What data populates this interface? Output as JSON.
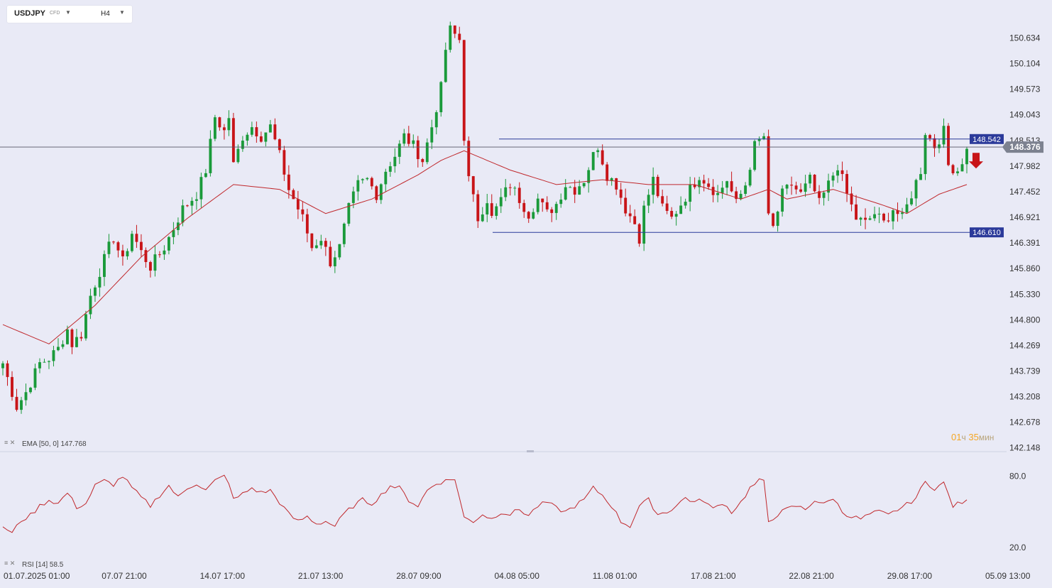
{
  "header": {
    "symbol": "USDJPY",
    "symbol_tag": "CFD",
    "timeframe": "H4"
  },
  "countdown": {
    "hours": "01",
    "hours_unit": "ч",
    "minutes": "35",
    "minutes_unit": "мин"
  },
  "indicators": {
    "ema_label": "EMA [50, 0] 147.768",
    "rsi_label": "RSI [14] 58.5"
  },
  "colors": {
    "background": "#e9eaf6",
    "bull": "#1a9a3a",
    "bear": "#c81418",
    "ema": "#c0282c",
    "level_line": "#2b3a9a",
    "price_tag": "#7d8290",
    "arrow": "#c81418"
  },
  "chart_data": {
    "type": "candlestick",
    "price_axis": {
      "ticks": [
        "150.634",
        "150.104",
        "149.573",
        "149.043",
        "148.513",
        "147.982",
        "147.452",
        "146.921",
        "146.391",
        "145.860",
        "145.330",
        "144.800",
        "144.269",
        "143.739",
        "143.208",
        "142.678",
        "142.148"
      ],
      "range": [
        142.148,
        150.634
      ]
    },
    "time_axis": {
      "ticks": [
        "01.07.2025  01:00",
        "07.07  21:00",
        "14.07  17:00",
        "21.07  13:00",
        "28.07  09:00",
        "04.08  05:00",
        "11.08  01:00",
        "17.08  21:00",
        "22.08  21:00",
        "29.08  17:00",
        "05.09  13:00"
      ]
    },
    "current_price": "148.376",
    "levels": [
      {
        "label": "148.542",
        "value": 148.542
      },
      {
        "label": "146.610",
        "value": 146.61
      }
    ],
    "close_path": [
      [
        0,
        143.9
      ],
      [
        3,
        143.0
      ],
      [
        5,
        143.3
      ],
      [
        8,
        143.9
      ],
      [
        10,
        144.0
      ],
      [
        12,
        144.2
      ],
      [
        14,
        144.6
      ],
      [
        15,
        144.3
      ],
      [
        17,
        144.5
      ],
      [
        19,
        145.3
      ],
      [
        21,
        145.8
      ],
      [
        23,
        146.3
      ],
      [
        24,
        146.5
      ],
      [
        26,
        146.0
      ],
      [
        28,
        146.6
      ],
      [
        30,
        146.2
      ],
      [
        32,
        145.9
      ],
      [
        35,
        146.3
      ],
      [
        37,
        146.7
      ],
      [
        39,
        147.1
      ],
      [
        42,
        147.4
      ],
      [
        44,
        147.9
      ],
      [
        46,
        149.0
      ],
      [
        48,
        148.7
      ],
      [
        49,
        149.0
      ],
      [
        50,
        148.0
      ],
      [
        52,
        148.6
      ],
      [
        54,
        148.8
      ],
      [
        56,
        148.6
      ],
      [
        58,
        148.8
      ],
      [
        60,
        148.2
      ],
      [
        62,
        147.5
      ],
      [
        64,
        147.1
      ],
      [
        65,
        146.9
      ],
      [
        67,
        146.3
      ],
      [
        69,
        146.5
      ],
      [
        71,
        146.0
      ],
      [
        73,
        146.3
      ],
      [
        75,
        147.1
      ],
      [
        77,
        147.6
      ],
      [
        79,
        147.7
      ],
      [
        81,
        147.4
      ],
      [
        83,
        147.9
      ],
      [
        85,
        148.2
      ],
      [
        87,
        148.6
      ],
      [
        89,
        148.4
      ],
      [
        91,
        148.1
      ],
      [
        93,
        148.8
      ],
      [
        95,
        149.6
      ],
      [
        96,
        150.4
      ],
      [
        97,
        150.8
      ],
      [
        99,
        150.6
      ],
      [
        100,
        148.6
      ],
      [
        101,
        147.7
      ],
      [
        102,
        147.3
      ],
      [
        103,
        146.9
      ],
      [
        105,
        147.3
      ],
      [
        106,
        146.9
      ],
      [
        108,
        147.3
      ],
      [
        110,
        147.6
      ],
      [
        112,
        147.3
      ],
      [
        114,
        147.0
      ],
      [
        116,
        147.3
      ],
      [
        118,
        147.0
      ],
      [
        120,
        147.2
      ],
      [
        122,
        147.6
      ],
      [
        124,
        147.5
      ],
      [
        126,
        147.7
      ],
      [
        128,
        148.2
      ],
      [
        129,
        148.4
      ],
      [
        131,
        147.8
      ],
      [
        133,
        147.6
      ],
      [
        135,
        147.1
      ],
      [
        137,
        146.8
      ],
      [
        138,
        146.5
      ],
      [
        139,
        147.1
      ],
      [
        141,
        147.7
      ],
      [
        143,
        147.1
      ],
      [
        145,
        146.9
      ],
      [
        147,
        147.2
      ],
      [
        149,
        147.5
      ],
      [
        151,
        147.8
      ],
      [
        153,
        147.6
      ],
      [
        155,
        147.4
      ],
      [
        157,
        147.7
      ],
      [
        159,
        147.2
      ],
      [
        161,
        147.6
      ],
      [
        162,
        148.0
      ],
      [
        163,
        148.4
      ],
      [
        165,
        148.6
      ],
      [
        166,
        146.9
      ],
      [
        167,
        146.7
      ],
      [
        169,
        147.4
      ],
      [
        171,
        147.6
      ],
      [
        173,
        147.4
      ],
      [
        175,
        147.7
      ],
      [
        177,
        147.2
      ],
      [
        179,
        147.6
      ],
      [
        181,
        148.0
      ],
      [
        183,
        147.4
      ],
      [
        185,
        146.9
      ],
      [
        187,
        146.8
      ],
      [
        189,
        147.0
      ],
      [
        191,
        146.8
      ],
      [
        193,
        147.1
      ],
      [
        195,
        146.9
      ],
      [
        197,
        147.4
      ],
      [
        199,
        147.9
      ],
      [
        200,
        148.7
      ],
      [
        202,
        148.4
      ],
      [
        204,
        148.7
      ],
      [
        205,
        148.0
      ],
      [
        207,
        147.9
      ],
      [
        209,
        148.3
      ]
    ],
    "ema_50": {
      "last": 147.768,
      "path": [
        [
          0,
          144.7
        ],
        [
          10,
          144.3
        ],
        [
          20,
          145.1
        ],
        [
          30,
          146.1
        ],
        [
          40,
          146.9
        ],
        [
          50,
          147.6
        ],
        [
          60,
          147.5
        ],
        [
          70,
          147.0
        ],
        [
          80,
          147.3
        ],
        [
          90,
          147.8
        ],
        [
          95,
          148.1
        ],
        [
          100,
          148.3
        ],
        [
          105,
          148.1
        ],
        [
          110,
          147.9
        ],
        [
          120,
          147.6
        ],
        [
          130,
          147.7
        ],
        [
          140,
          147.6
        ],
        [
          150,
          147.6
        ],
        [
          160,
          147.3
        ],
        [
          166,
          147.5
        ],
        [
          170,
          147.3
        ],
        [
          180,
          147.5
        ],
        [
          190,
          147.2
        ],
        [
          196,
          147.0
        ],
        [
          203,
          147.4
        ],
        [
          209,
          147.6
        ]
      ]
    },
    "rsi_14": {
      "last": 58.5,
      "ticks": [
        "80.0",
        "20.0"
      ],
      "range": [
        0,
        100
      ],
      "path": [
        [
          0,
          38
        ],
        [
          2,
          32
        ],
        [
          4,
          43
        ],
        [
          6,
          47
        ],
        [
          8,
          55
        ],
        [
          10,
          60
        ],
        [
          12,
          57
        ],
        [
          14,
          66
        ],
        [
          16,
          54
        ],
        [
          18,
          57
        ],
        [
          20,
          72
        ],
        [
          22,
          76
        ],
        [
          24,
          73
        ],
        [
          26,
          80
        ],
        [
          28,
          70
        ],
        [
          30,
          62
        ],
        [
          32,
          55
        ],
        [
          34,
          64
        ],
        [
          36,
          72
        ],
        [
          38,
          62
        ],
        [
          40,
          70
        ],
        [
          42,
          74
        ],
        [
          44,
          68
        ],
        [
          46,
          76
        ],
        [
          48,
          80
        ],
        [
          49,
          75
        ],
        [
          50,
          60
        ],
        [
          52,
          65
        ],
        [
          54,
          70
        ],
        [
          56,
          66
        ],
        [
          58,
          68
        ],
        [
          60,
          58
        ],
        [
          62,
          48
        ],
        [
          64,
          42
        ],
        [
          66,
          46
        ],
        [
          68,
          40
        ],
        [
          70,
          42
        ],
        [
          72,
          38
        ],
        [
          74,
          48
        ],
        [
          76,
          55
        ],
        [
          78,
          60
        ],
        [
          80,
          57
        ],
        [
          82,
          64
        ],
        [
          84,
          72
        ],
        [
          86,
          70
        ],
        [
          88,
          60
        ],
        [
          90,
          55
        ],
        [
          92,
          68
        ],
        [
          94,
          74
        ],
        [
          96,
          76
        ],
        [
          98,
          78
        ],
        [
          100,
          45
        ],
        [
          102,
          42
        ],
        [
          104,
          48
        ],
        [
          106,
          44
        ],
        [
          108,
          50
        ],
        [
          110,
          48
        ],
        [
          112,
          52
        ],
        [
          114,
          47
        ],
        [
          116,
          55
        ],
        [
          118,
          58
        ],
        [
          120,
          53
        ],
        [
          122,
          50
        ],
        [
          124,
          55
        ],
        [
          126,
          60
        ],
        [
          128,
          70
        ],
        [
          130,
          64
        ],
        [
          132,
          55
        ],
        [
          134,
          42
        ],
        [
          136,
          38
        ],
        [
          138,
          55
        ],
        [
          140,
          60
        ],
        [
          142,
          48
        ],
        [
          144,
          50
        ],
        [
          146,
          55
        ],
        [
          148,
          62
        ],
        [
          150,
          58
        ],
        [
          152,
          60
        ],
        [
          154,
          52
        ],
        [
          156,
          58
        ],
        [
          158,
          50
        ],
        [
          160,
          58
        ],
        [
          162,
          70
        ],
        [
          164,
          76
        ],
        [
          165,
          75
        ],
        [
          166,
          42
        ],
        [
          168,
          48
        ],
        [
          170,
          52
        ],
        [
          172,
          55
        ],
        [
          174,
          52
        ],
        [
          176,
          60
        ],
        [
          178,
          56
        ],
        [
          180,
          62
        ],
        [
          182,
          50
        ],
        [
          184,
          46
        ],
        [
          186,
          44
        ],
        [
          188,
          48
        ],
        [
          190,
          50
        ],
        [
          192,
          47
        ],
        [
          194,
          52
        ],
        [
          196,
          56
        ],
        [
          198,
          62
        ],
        [
          200,
          75
        ],
        [
          202,
          70
        ],
        [
          204,
          74
        ],
        [
          206,
          55
        ],
        [
          208,
          58
        ],
        [
          209,
          58.5
        ]
      ]
    }
  }
}
